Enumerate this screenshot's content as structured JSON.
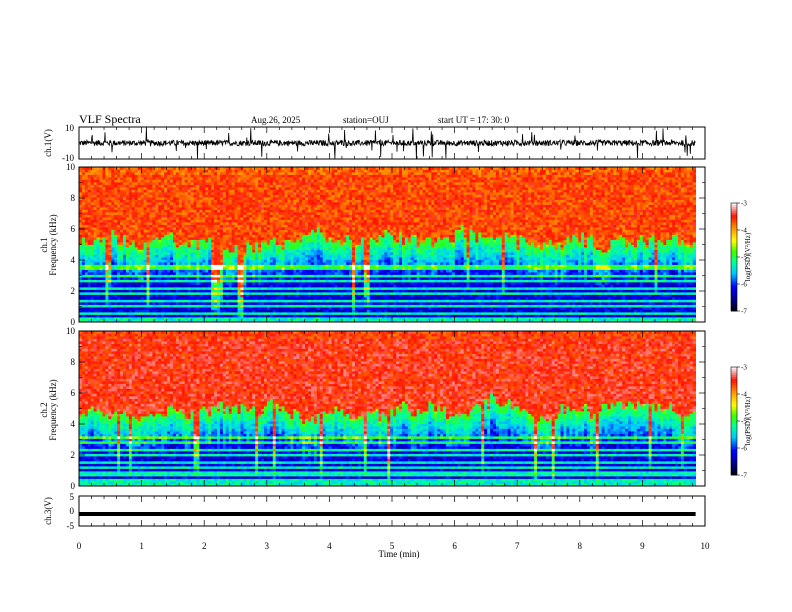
{
  "header": {
    "title": "VLF Spectra",
    "date": "Aug.26, 2025",
    "station": "station=OUJ",
    "start": "start  UT  =   17: 30: 0"
  },
  "chart_data": [
    {
      "name": "ch1-waveform",
      "type": "line",
      "ylabel": "ch.1(V)",
      "yticks": [
        "10",
        "-10"
      ],
      "ylim": [
        -10,
        10
      ],
      "xlim": [
        0,
        10
      ],
      "description_level": 0,
      "noise_amplitude": 2,
      "max_spike": 10
    },
    {
      "name": "ch1-spectrogram",
      "type": "heatmap",
      "ylabel_line1": "ch.1",
      "ylabel_line2": "Frequency (kHz)",
      "yticks": [
        "0",
        "2",
        "4",
        "6",
        "8",
        "10"
      ],
      "ylim": [
        0,
        10
      ],
      "xlim": [
        0,
        9.85
      ],
      "colorbar": {
        "label": "log(PSD)(V²/Hz)",
        "ticks": [
          "-3",
          "-4",
          "-5",
          "-6",
          "-7"
        ],
        "range": [
          -7,
          -3
        ],
        "colors": [
          "#000000",
          "#00007f",
          "#0000ff",
          "#00ffff",
          "#00ff00",
          "#ffff00",
          "#ff7f00",
          "#ff0000",
          "#ffb0b0",
          "#ffffff"
        ]
      },
      "mean_cutoff_khz": 5.2,
      "noisy_lines_khz": [
        0.3,
        0.6,
        1.0,
        1.3,
        1.8,
        2.2,
        2.6,
        3.0,
        3.4,
        3.7
      ]
    },
    {
      "name": "ch2-spectrogram",
      "type": "heatmap",
      "ylabel_line1": "ch.2",
      "ylabel_line2": "Frequency (kHz)",
      "yticks": [
        "0",
        "2",
        "4",
        "6",
        "8",
        "10"
      ],
      "ylim": [
        0,
        10
      ],
      "xlim": [
        0,
        9.85
      ],
      "colorbar": {
        "label": "log(PSD)(V²/Hz)",
        "ticks": [
          "-3",
          "-4",
          "-5",
          "-6",
          "-7"
        ],
        "range": [
          -7,
          -3
        ]
      },
      "mean_cutoff_khz": 5.0,
      "noisy_lines_khz": [
        0.4,
        0.8,
        1.2,
        1.6,
        2.0,
        2.4,
        2.8,
        3.2
      ]
    },
    {
      "name": "ch3-waveform",
      "type": "line",
      "ylabel": "ch.3(V)",
      "yticks": [
        "5",
        "0",
        "-5"
      ],
      "ylim": [
        -5,
        5
      ],
      "xlim": [
        0,
        10
      ],
      "level": -1
    }
  ],
  "xaxis": {
    "label": "Time  (min)",
    "ticks": [
      "0",
      "1",
      "2",
      "3",
      "4",
      "5",
      "6",
      "7",
      "8",
      "9",
      "10"
    ],
    "range": [
      0,
      10
    ]
  }
}
